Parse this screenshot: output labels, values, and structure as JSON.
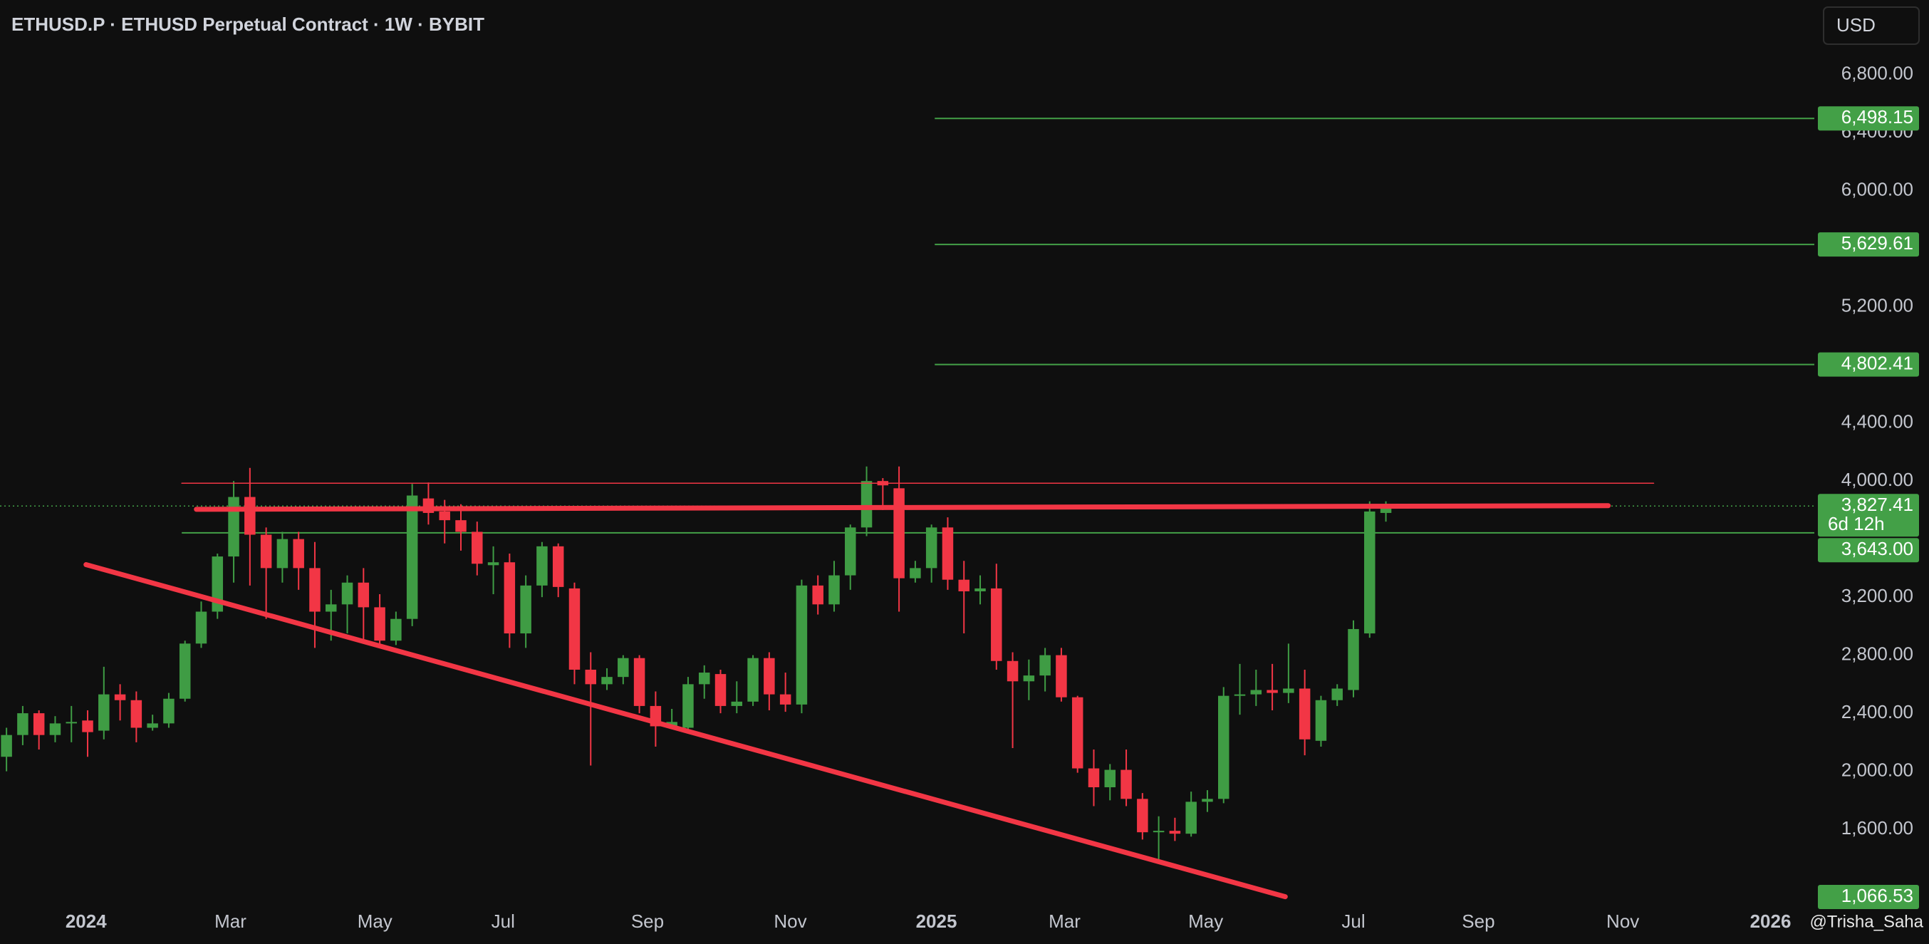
{
  "chart_data": {
    "type": "candlestick",
    "title": "ETHUSD.P · ETHUSD Perpetual Contract · 1W · BYBIT",
    "currency_button": "USD",
    "watermark": "@Trisha_Saha",
    "up_color": "#3f9c44",
    "down_color": "#f23645",
    "open": [
      2100,
      2250,
      2400,
      2250,
      2330,
      2350,
      2280,
      2530,
      2490,
      2300,
      2330,
      2500,
      2880,
      3100,
      3480,
      3890,
      3630,
      3400,
      3600,
      3400,
      3100,
      3150,
      3300,
      3130,
      2900,
      3050,
      3880,
      3790,
      3730,
      3650,
      3420,
      3440,
      2950,
      3280,
      3550,
      3260,
      2700,
      2600,
      2650,
      2780,
      2450,
      2310,
      2300,
      2600,
      2670,
      2450,
      2480,
      2780,
      2530,
      2460,
      3280,
      3150,
      3350,
      3680,
      4000,
      3950,
      3330,
      3400,
      3680,
      3320,
      3240,
      3260,
      2760,
      2620,
      2660,
      2800,
      2510,
      2020,
      1890,
      2010,
      1810,
      1580,
      1590,
      1570,
      1790,
      1810,
      2520,
      2530,
      2560,
      2540,
      2570,
      2210,
      2490,
      2560,
      2950,
      3780
    ],
    "high": [
      2300,
      2450,
      2420,
      2380,
      2450,
      2420,
      2720,
      2600,
      2550,
      2390,
      2540,
      2900,
      3170,
      3500,
      4000,
      4090,
      3680,
      3650,
      3650,
      3580,
      3250,
      3350,
      3400,
      3220,
      3100,
      3980,
      3990,
      3870,
      3840,
      3720,
      3550,
      3500,
      3350,
      3580,
      3570,
      3300,
      2820,
      2710,
      2800,
      2800,
      2550,
      2430,
      2650,
      2730,
      2700,
      2620,
      2800,
      2820,
      2680,
      3320,
      3350,
      3450,
      3700,
      4100,
      4020,
      4100,
      3450,
      3700,
      3750,
      3450,
      3350,
      3430,
      2820,
      2770,
      2850,
      2850,
      2520,
      2150,
      2050,
      2150,
      1850,
      1690,
      1680,
      1860,
      1870,
      2580,
      2740,
      2700,
      2740,
      2880,
      2700,
      2520,
      2600,
      3040,
      3860,
      3860
    ],
    "low": [
      2000,
      2180,
      2150,
      2200,
      2200,
      2100,
      2220,
      2350,
      2200,
      2280,
      2300,
      2480,
      2850,
      3050,
      3300,
      3280,
      3050,
      3300,
      3250,
      2850,
      2900,
      2950,
      2900,
      2850,
      2870,
      3000,
      3700,
      3570,
      3520,
      3350,
      3220,
      2850,
      2850,
      3200,
      3200,
      2600,
      2040,
      2560,
      2600,
      2400,
      2170,
      2290,
      2260,
      2500,
      2400,
      2400,
      2450,
      2420,
      2410,
      2400,
      3080,
      3100,
      3250,
      3620,
      3800,
      3100,
      3300,
      3300,
      3250,
      2950,
      3150,
      2700,
      2160,
      2490,
      2550,
      2480,
      1990,
      1760,
      1800,
      1760,
      1530,
      1390,
      1520,
      1550,
      1720,
      1780,
      2390,
      2450,
      2420,
      2470,
      2110,
      2170,
      2450,
      2510,
      2920,
      3720
    ],
    "close": [
      2250,
      2400,
      2250,
      2330,
      2340,
      2270,
      2530,
      2490,
      2300,
      2330,
      2500,
      2880,
      3100,
      3480,
      3890,
      3630,
      3400,
      3600,
      3400,
      3100,
      3150,
      3300,
      3130,
      2900,
      3050,
      3900,
      3780,
      3730,
      3650,
      3430,
      3440,
      2950,
      3280,
      3550,
      3270,
      2700,
      2600,
      2650,
      2780,
      2450,
      2310,
      2340,
      2600,
      2680,
      2450,
      2480,
      2780,
      2530,
      2460,
      3280,
      3150,
      3350,
      3680,
      4000,
      3970,
      3330,
      3400,
      3680,
      3320,
      3240,
      3260,
      2760,
      2620,
      2660,
      2800,
      2510,
      2020,
      1890,
      2010,
      1810,
      1580,
      1590,
      1570,
      1790,
      1810,
      2520,
      2530,
      2560,
      2540,
      2570,
      2220,
      2490,
      2570,
      2980,
      3790,
      3827.41
    ],
    "xlim": [
      -0.4,
      111.4
    ],
    "xticks": [
      {
        "value": 4.9,
        "label": "2024"
      },
      {
        "value": 13.8,
        "label": "Mar"
      },
      {
        "value": 22.7,
        "label": "May"
      },
      {
        "value": 30.6,
        "label": "Jul"
      },
      {
        "value": 39.5,
        "label": "Sep"
      },
      {
        "value": 48.3,
        "label": "Nov"
      },
      {
        "value": 57.3,
        "label": "2025"
      },
      {
        "value": 65.2,
        "label": "Mar"
      },
      {
        "value": 73.9,
        "label": "May"
      },
      {
        "value": 83.0,
        "label": "Jul"
      },
      {
        "value": 90.7,
        "label": "Sep"
      },
      {
        "value": 99.6,
        "label": "Nov"
      },
      {
        "value": 108.7,
        "label": "2026"
      }
    ],
    "ylim": [
      1085,
      7314
    ],
    "yticks": [
      {
        "value": 6800,
        "label": "6,800.00"
      },
      {
        "value": 6400,
        "label": "6,400.00"
      },
      {
        "value": 6000,
        "label": "6,000.00"
      },
      {
        "value": 5200,
        "label": "5,200.00"
      },
      {
        "value": 4400,
        "label": "4,400.00"
      },
      {
        "value": 4000,
        "label": "4,000.00"
      },
      {
        "value": 3200,
        "label": "3,200.00"
      },
      {
        "value": 2800,
        "label": "2,800.00"
      },
      {
        "value": 2400,
        "label": "2,400.00"
      },
      {
        "value": 2000,
        "label": "2,000.00"
      },
      {
        "value": 1600,
        "label": "1,600.00"
      }
    ],
    "levels": [
      {
        "value": 6498.15,
        "label": "6,498.15",
        "line": "solid",
        "from": 57.2,
        "color": "#43a047"
      },
      {
        "value": 5629.61,
        "label": "5,629.61",
        "line": "solid",
        "from": 57.2,
        "color": "#43a047"
      },
      {
        "value": 4802.41,
        "label": "4,802.41",
        "line": "solid",
        "from": 57.2,
        "color": "#43a047"
      },
      {
        "value": 3827.41,
        "label": "3,827.41",
        "sublabel": "6d 12h",
        "line": "dotted",
        "from": -0.4,
        "color": "#43a047"
      },
      {
        "value": 3643,
        "label": "3,643.00",
        "line": "solid",
        "from": 10.8,
        "color": "#43a047"
      },
      {
        "value": 1066.53,
        "label": "1,066.53",
        "line": "none",
        "from": -0.4,
        "color": "#43a047"
      }
    ],
    "lines": [
      {
        "x": [
          10.8,
          101.5
        ],
        "y": [
          3985,
          3985
        ],
        "color": "#f23645",
        "width": 1.5
      },
      {
        "x": [
          11.7,
          98.7
        ],
        "y": [
          3805,
          3830
        ],
        "color": "#f23645",
        "width": 7
      },
      {
        "x": [
          4.9,
          78.8
        ],
        "y": [
          3424,
          1136
        ],
        "color": "#f23645",
        "width": 7
      }
    ]
  }
}
